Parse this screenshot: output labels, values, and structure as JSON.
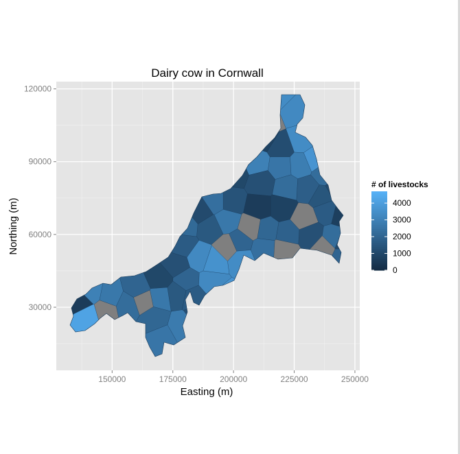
{
  "chart_data": {
    "type": "choropleth_map",
    "title": "Dairy cow in Cornwall",
    "xlabel": "Easting (m)",
    "ylabel": "Northing (m)",
    "xlim": [
      127000,
      252000
    ],
    "ylim": [
      4000,
      123000
    ],
    "x_ticks": [
      150000,
      175000,
      200000,
      225000,
      250000
    ],
    "y_ticks": [
      30000,
      60000,
      90000,
      120000
    ],
    "grid": true,
    "legend": {
      "title": "# of livestocks",
      "placement": "right",
      "breaks": [
        0,
        1000,
        2000,
        3000,
        4000
      ],
      "range": [
        0,
        4700
      ],
      "low_color": "#132b43",
      "high_color": "#56b1f7",
      "na_color": "#7f7f7f"
    },
    "regions": [
      {
        "x": 219000,
        "y": 116500,
        "value": 3400
      },
      {
        "x": 214500,
        "y": 107000,
        "value": null
      },
      {
        "x": 224500,
        "y": 111000,
        "value": 3300
      },
      {
        "x": 213000,
        "y": 100000,
        "value": 800
      },
      {
        "x": 219500,
        "y": 96000,
        "value": 1200
      },
      {
        "x": 228000,
        "y": 99000,
        "value": 3400
      },
      {
        "x": 233500,
        "y": 91000,
        "value": 3700
      },
      {
        "x": 237500,
        "y": 85000,
        "value": 2300
      },
      {
        "x": 227500,
        "y": 88500,
        "value": 2900
      },
      {
        "x": 219500,
        "y": 88000,
        "value": 2600
      },
      {
        "x": 209500,
        "y": 89500,
        "value": 3000
      },
      {
        "x": 200500,
        "y": 85500,
        "value": 1000
      },
      {
        "x": 211500,
        "y": 81500,
        "value": 1300
      },
      {
        "x": 222000,
        "y": 79500,
        "value": 2300
      },
      {
        "x": 230500,
        "y": 79000,
        "value": 1800
      },
      {
        "x": 236500,
        "y": 75500,
        "value": 1500
      },
      {
        "x": 242500,
        "y": 79000,
        "value": 1100
      },
      {
        "x": 244500,
        "y": 68500,
        "value": 700
      },
      {
        "x": 238500,
        "y": 70000,
        "value": 1700
      },
      {
        "x": 229000,
        "y": 66500,
        "value": null
      },
      {
        "x": 220000,
        "y": 71000,
        "value": 800
      },
      {
        "x": 210500,
        "y": 71000,
        "value": 600
      },
      {
        "x": 199000,
        "y": 73500,
        "value": 1400
      },
      {
        "x": 192500,
        "y": 73500,
        "value": 2400
      },
      {
        "x": 186500,
        "y": 69500,
        "value": 1100
      },
      {
        "x": 180000,
        "y": 64000,
        "value": 2200
      },
      {
        "x": 190500,
        "y": 63000,
        "value": 1600
      },
      {
        "x": 197000,
        "y": 66000,
        "value": 2700
      },
      {
        "x": 207500,
        "y": 63000,
        "value": null
      },
      {
        "x": 213500,
        "y": 62000,
        "value": 2100
      },
      {
        "x": 222500,
        "y": 60500,
        "value": 1900
      },
      {
        "x": 231500,
        "y": 60000,
        "value": 1300
      },
      {
        "x": 241500,
        "y": 58500,
        "value": 2300
      },
      {
        "x": 237500,
        "y": 54500,
        "value": null
      },
      {
        "x": 245000,
        "y": 57000,
        "value": 1100
      },
      {
        "x": 245000,
        "y": 51000,
        "value": 2000
      },
      {
        "x": 221000,
        "y": 53500,
        "value": null
      },
      {
        "x": 212500,
        "y": 54000,
        "value": 2400
      },
      {
        "x": 202500,
        "y": 56500,
        "value": 2000
      },
      {
        "x": 203000,
        "y": 50000,
        "value": 3400
      },
      {
        "x": 198000,
        "y": 54500,
        "value": null
      },
      {
        "x": 192000,
        "y": 48500,
        "value": 3600
      },
      {
        "x": 186000,
        "y": 50500,
        "value": 3300
      },
      {
        "x": 179000,
        "y": 55500,
        "value": 1700
      },
      {
        "x": 176500,
        "y": 47500,
        "value": 1300
      },
      {
        "x": 180500,
        "y": 41000,
        "value": 2000
      },
      {
        "x": 191000,
        "y": 40500,
        "value": 3300
      },
      {
        "x": 196000,
        "y": 34500,
        "value": 3700
      },
      {
        "x": 183500,
        "y": 34000,
        "value": 1700
      },
      {
        "x": 186000,
        "y": 27500,
        "value": 1300
      },
      {
        "x": 176500,
        "y": 35500,
        "value": 1600
      },
      {
        "x": 178500,
        "y": 22000,
        "value": 2800
      },
      {
        "x": 170500,
        "y": 17500,
        "value": 2600
      },
      {
        "x": 167500,
        "y": 25000,
        "value": 2100
      },
      {
        "x": 170000,
        "y": 34500,
        "value": 2700
      },
      {
        "x": 169500,
        "y": 41500,
        "value": 1000
      },
      {
        "x": 160500,
        "y": 37500,
        "value": 2000
      },
      {
        "x": 162500,
        "y": 33000,
        "value": null
      },
      {
        "x": 156500,
        "y": 31000,
        "value": 2300
      },
      {
        "x": 149000,
        "y": 34500,
        "value": 2700
      },
      {
        "x": 141500,
        "y": 36000,
        "value": 3000
      },
      {
        "x": 137500,
        "y": 32000,
        "value": 600
      },
      {
        "x": 140000,
        "y": 27000,
        "value": 4200
      },
      {
        "x": 147000,
        "y": 29000,
        "value": null
      }
    ]
  }
}
